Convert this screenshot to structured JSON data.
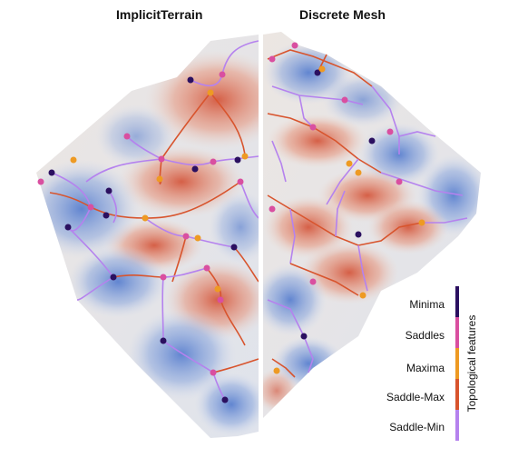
{
  "titles": {
    "left": "ImplicitTerrain",
    "right": "Discrete Mesh"
  },
  "legend": {
    "caption": "Topological features",
    "items": [
      {
        "label": "Minima",
        "color": "#2b1060"
      },
      {
        "label": "Saddles",
        "color": "#d94fa0"
      },
      {
        "label": "Maxima",
        "color": "#ee9a23"
      },
      {
        "label": "Saddle-Max",
        "color": "#d8542d"
      },
      {
        "label": "Saddle-Min",
        "color": "#b582ee"
      }
    ]
  },
  "colors": {
    "low": "#6a8ed6",
    "mid": "#ece5e0",
    "high": "#d86a52",
    "divider": "#ffffff"
  }
}
